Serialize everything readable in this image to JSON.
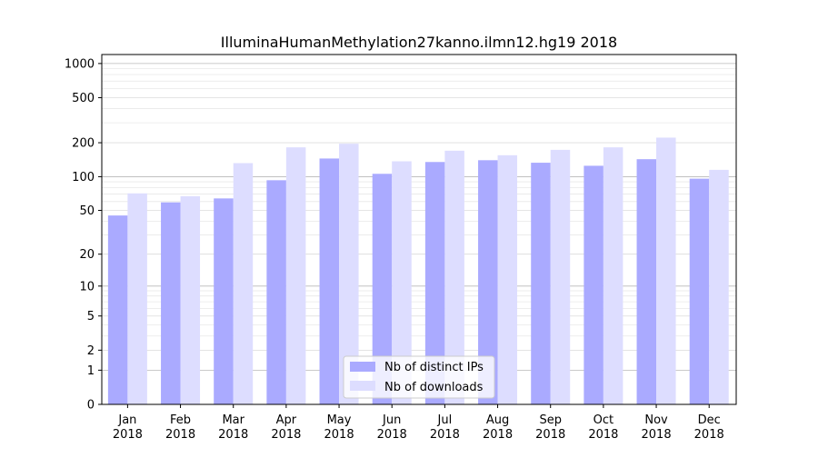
{
  "chart_data": {
    "type": "bar",
    "title": "IlluminaHumanMethylation27kanno.ilmn12.hg19 2018",
    "xlabel": "",
    "ylabel": "",
    "categories": [
      [
        "Jan",
        "2018"
      ],
      [
        "Feb",
        "2018"
      ],
      [
        "Mar",
        "2018"
      ],
      [
        "Apr",
        "2018"
      ],
      [
        "May",
        "2018"
      ],
      [
        "Jun",
        "2018"
      ],
      [
        "Jul",
        "2018"
      ],
      [
        "Aug",
        "2018"
      ],
      [
        "Sep",
        "2018"
      ],
      [
        "Oct",
        "2018"
      ],
      [
        "Nov",
        "2018"
      ],
      [
        "Dec",
        "2018"
      ]
    ],
    "series": [
      {
        "name": "Nb of distinct IPs",
        "color": "#aaaaff",
        "values": [
          45,
          59,
          64,
          93,
          145,
          106,
          135,
          140,
          133,
          125,
          143,
          96
        ]
      },
      {
        "name": "Nb of downloads",
        "color": "#ddddff",
        "values": [
          71,
          67,
          132,
          182,
          196,
          137,
          170,
          155,
          173,
          182,
          222,
          115
        ]
      }
    ],
    "y_scale": "log(1+y)",
    "ylim": [
      0,
      1200
    ],
    "yticks": [
      0,
      1,
      2,
      5,
      10,
      20,
      50,
      100,
      200,
      500,
      1000
    ],
    "grid": true,
    "legend_position": "lower center"
  }
}
